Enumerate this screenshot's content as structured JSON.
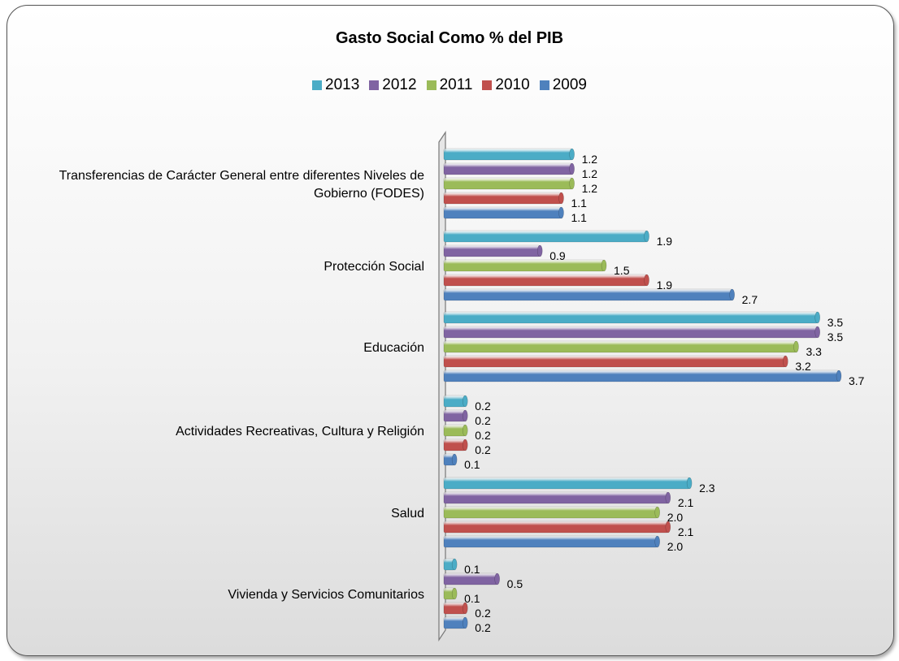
{
  "chart_data": {
    "type": "bar",
    "orientation": "horizontal",
    "title": "Gasto Social  Como % del PIB",
    "categories": [
      [
        "Transferencias de Carácter General entre diferentes Niveles de",
        "Gobierno (FODES)"
      ],
      [
        "Protección Social"
      ],
      [
        "Educación"
      ],
      [
        "Actividades Recreativas, Cultura y Religión"
      ],
      [
        "Salud"
      ],
      [
        "Vivienda y Servicios Comunitarios"
      ]
    ],
    "series": [
      {
        "name": "2013",
        "color": "#4bacc6",
        "values": [
          1.2,
          1.9,
          3.5,
          0.2,
          2.3,
          0.1
        ],
        "labels": [
          "1.2",
          "1.9",
          "3.5",
          "0.2",
          "2.3",
          "0.1"
        ]
      },
      {
        "name": "2012",
        "color": "#8064a2",
        "values": [
          1.2,
          0.9,
          3.5,
          0.2,
          2.1,
          0.5
        ],
        "labels": [
          "1.2",
          "0.9",
          "3.5",
          "0.2",
          "2.1",
          "0.5"
        ]
      },
      {
        "name": "2011",
        "color": "#9bbb59",
        "values": [
          1.2,
          1.5,
          3.3,
          0.2,
          2.0,
          0.1
        ],
        "labels": [
          "1.2",
          "1.5",
          "3.3",
          "0.2",
          "2.0",
          "0.1"
        ]
      },
      {
        "name": "2010",
        "color": "#c0504d",
        "values": [
          1.1,
          1.9,
          3.2,
          0.2,
          2.1,
          0.2
        ],
        "labels": [
          "1.1",
          "1.9",
          "3.2",
          "0.2",
          "2.1",
          "0.2"
        ]
      },
      {
        "name": "2009",
        "color": "#4f81bd",
        "values": [
          1.1,
          2.7,
          3.7,
          0.1,
          2.0,
          0.2
        ],
        "labels": [
          "1.1",
          "2.7",
          "3.7",
          "0.1",
          "2.0",
          "0.2"
        ]
      }
    ],
    "xlim": [
      0,
      3.7
    ],
    "legend_position": "top",
    "grid": false
  }
}
